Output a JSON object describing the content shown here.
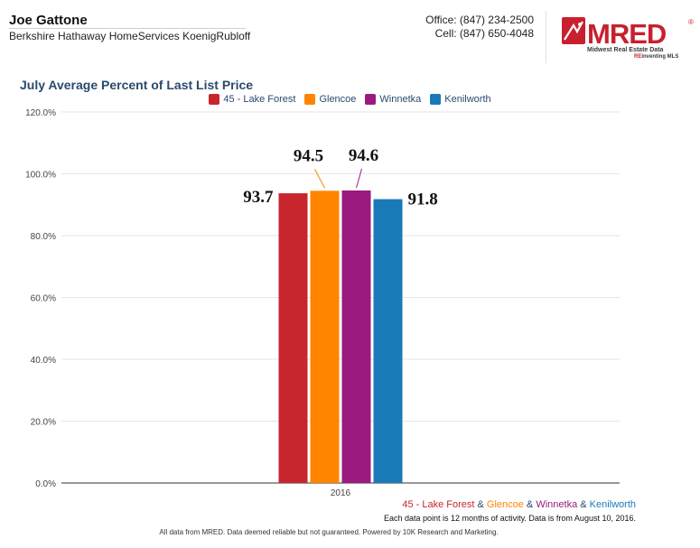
{
  "agent": {
    "name": "Joe Gattone",
    "company": "Berkshire Hathaway HomeServices KoenigRubloff",
    "office": "Office: (847) 234-2500",
    "cell": "Cell: (847) 650-4048"
  },
  "logo": {
    "mark": "MRED",
    "registered": "®",
    "line1": "Midwest Real Estate Data",
    "line2_prefix": "RE",
    "line2_rest": "inventing MLS",
    "colors": {
      "red": "#c8202f",
      "dark": "#3a3a3a"
    }
  },
  "colors": {
    "title": "#2a4a6d",
    "gridline": "#e6e6e6",
    "axis": "#333333"
  },
  "chart_data": {
    "type": "bar",
    "title": "July Average Percent of Last List Price",
    "categories": [
      "2016"
    ],
    "series": [
      {
        "name": "45 - Lake Forest",
        "values": [
          93.7
        ],
        "color": "#c8262d",
        "label": "93.7"
      },
      {
        "name": "Glencoe",
        "values": [
          94.5
        ],
        "color": "#ff8400",
        "label": "94.5"
      },
      {
        "name": "Winnetka",
        "values": [
          94.6
        ],
        "color": "#9b1a7f",
        "label": "94.6"
      },
      {
        "name": "Kenilworth",
        "values": [
          91.8
        ],
        "color": "#1a7ab8",
        "label": "91.8"
      }
    ],
    "ylim": [
      0,
      120
    ],
    "yticks": [
      "0.0%",
      "20.0%",
      "40.0%",
      "60.0%",
      "80.0%",
      "100.0%",
      "120.0%"
    ],
    "ytick_values": [
      0,
      20,
      40,
      60,
      80,
      100,
      120
    ],
    "xlabel": "",
    "ylabel": "",
    "grid": true,
    "legend": "top-center"
  },
  "footer": {
    "separator": " & ",
    "note": "Each data point is 12 months of activity. Data is from August 10, 2016.",
    "source": "All data from MRED. Data deemed reliable but not guaranteed. Powered by 10K Research and Marketing."
  }
}
